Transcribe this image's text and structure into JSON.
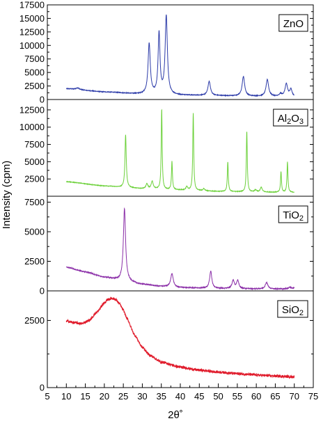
{
  "chart_data": {
    "type": "line",
    "xlabel": "2θ˚",
    "ylabel": "Intensity (cpm)",
    "xlim": [
      5,
      75
    ],
    "x_ticks": [
      5,
      10,
      15,
      20,
      25,
      30,
      35,
      40,
      45,
      50,
      55,
      60,
      65,
      70,
      75
    ],
    "grid": false,
    "panels": [
      {
        "label_parts": [
          {
            "t": "ZnO"
          }
        ],
        "color": "#2b3aa8",
        "ylim": [
          0,
          17500
        ],
        "y_ticks": [
          0,
          2500,
          5000,
          7500,
          10000,
          12500,
          15000,
          17500
        ],
        "baseline": [
          [
            10,
            2000
          ],
          [
            20,
            1400
          ],
          [
            30,
            1000
          ],
          [
            40,
            800
          ],
          [
            50,
            700
          ],
          [
            60,
            600
          ],
          [
            70,
            550
          ]
        ],
        "peaks": [
          {
            "x": 13,
            "h": 300,
            "w": 0.5
          },
          {
            "x": 31.8,
            "h": 9300,
            "w": 0.35
          },
          {
            "x": 34.4,
            "h": 11200,
            "w": 0.3
          },
          {
            "x": 36.3,
            "h": 14500,
            "w": 0.35
          },
          {
            "x": 47.6,
            "h": 2600,
            "w": 0.4
          },
          {
            "x": 56.6,
            "h": 3600,
            "w": 0.4
          },
          {
            "x": 62.9,
            "h": 3100,
            "w": 0.4
          },
          {
            "x": 66.4,
            "h": 450,
            "w": 0.35
          },
          {
            "x": 67.9,
            "h": 2300,
            "w": 0.4
          },
          {
            "x": 69.1,
            "h": 1300,
            "w": 0.35
          }
        ],
        "noise": 60
      },
      {
        "label_parts": [
          {
            "t": "Al"
          },
          {
            "t": "2",
            "sub": true
          },
          {
            "t": "O"
          },
          {
            "t": "3",
            "sub": true
          }
        ],
        "color": "#6cd13a",
        "ylim": [
          0,
          14000
        ],
        "y_ticks": [
          2500,
          5000,
          7500,
          10000,
          12500
        ],
        "baseline": [
          [
            10,
            2100
          ],
          [
            20,
            1500
          ],
          [
            25,
            1300
          ],
          [
            30,
            1100
          ],
          [
            40,
            900
          ],
          [
            50,
            700
          ],
          [
            60,
            600
          ],
          [
            70,
            550
          ]
        ],
        "peaks": [
          {
            "x": 25.6,
            "h": 7600,
            "w": 0.2
          },
          {
            "x": 31.2,
            "h": 700,
            "w": 0.3
          },
          {
            "x": 32.6,
            "h": 1100,
            "w": 0.3
          },
          {
            "x": 35.1,
            "h": 11600,
            "w": 0.15
          },
          {
            "x": 37.8,
            "h": 4100,
            "w": 0.15
          },
          {
            "x": 41.7,
            "h": 500,
            "w": 0.25
          },
          {
            "x": 43.4,
            "h": 11200,
            "w": 0.15
          },
          {
            "x": 46.2,
            "h": 300,
            "w": 0.3
          },
          {
            "x": 52.5,
            "h": 4300,
            "w": 0.15
          },
          {
            "x": 57.5,
            "h": 8800,
            "w": 0.15
          },
          {
            "x": 59.8,
            "h": 300,
            "w": 0.3
          },
          {
            "x": 61.3,
            "h": 700,
            "w": 0.3
          },
          {
            "x": 66.5,
            "h": 3000,
            "w": 0.15
          },
          {
            "x": 68.2,
            "h": 4400,
            "w": 0.15
          }
        ],
        "noise": 40
      },
      {
        "label_parts": [
          {
            "t": "TiO"
          },
          {
            "t": "2",
            "sub": true
          }
        ],
        "color": "#8b2fa8",
        "ylim": [
          0,
          8000
        ],
        "y_ticks": [
          0,
          2500,
          5000,
          7500
        ],
        "baseline": [
          [
            10,
            2000
          ],
          [
            15,
            1600
          ],
          [
            20,
            1150
          ],
          [
            25,
            850
          ],
          [
            30,
            550
          ],
          [
            35,
            380
          ],
          [
            40,
            280
          ],
          [
            50,
            200
          ],
          [
            60,
            170
          ],
          [
            70,
            160
          ]
        ],
        "peaks": [
          {
            "x": 25.3,
            "h": 6100,
            "w": 0.35
          },
          {
            "x": 37.8,
            "h": 1150,
            "w": 0.4
          },
          {
            "x": 48.0,
            "h": 1450,
            "w": 0.35
          },
          {
            "x": 53.9,
            "h": 700,
            "w": 0.35
          },
          {
            "x": 55.1,
            "h": 700,
            "w": 0.35
          },
          {
            "x": 62.7,
            "h": 550,
            "w": 0.4
          },
          {
            "x": 68.8,
            "h": 150,
            "w": 0.4
          },
          {
            "x": 70.3,
            "h": 150,
            "w": 0.4
          }
        ],
        "noise": 40
      },
      {
        "label_parts": [
          {
            "t": "SiO"
          },
          {
            "t": "2",
            "sub": true
          }
        ],
        "color": "#e01b2b",
        "ylim": [
          0,
          3600
        ],
        "y_ticks": [
          0,
          2500
        ],
        "baseline": [
          [
            10,
            2480
          ],
          [
            12,
            2420
          ],
          [
            14,
            2380
          ],
          [
            16,
            2500
          ],
          [
            18,
            2800
          ],
          [
            20,
            3150
          ],
          [
            21,
            3280
          ],
          [
            22,
            3330
          ],
          [
            23,
            3280
          ],
          [
            24,
            3120
          ],
          [
            25,
            2880
          ],
          [
            26,
            2560
          ],
          [
            28,
            1950
          ],
          [
            30,
            1500
          ],
          [
            32,
            1200
          ],
          [
            35,
            950
          ],
          [
            40,
            760
          ],
          [
            45,
            650
          ],
          [
            50,
            580
          ],
          [
            55,
            520
          ],
          [
            60,
            470
          ],
          [
            65,
            430
          ],
          [
            70,
            400
          ]
        ],
        "peaks": [],
        "noise": 50
      }
    ]
  }
}
